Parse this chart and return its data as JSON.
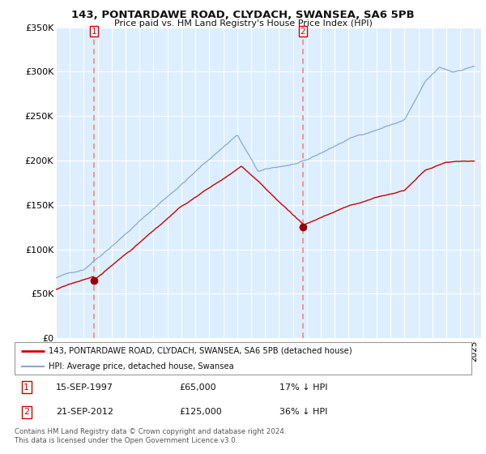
{
  "title": "143, PONTARDAWE ROAD, CLYDACH, SWANSEA, SA6 5PB",
  "subtitle": "Price paid vs. HM Land Registry's House Price Index (HPI)",
  "background_color": "#ffffff",
  "plot_bg_color": "#ddeeff",
  "grid_color": "#ffffff",
  "purchase1_date": 1997.75,
  "purchase1_price": 65000,
  "purchase2_date": 2012.72,
  "purchase2_price": 125000,
  "xmin": 1995,
  "xmax": 2025.5,
  "ymin": 0,
  "ymax": 350000,
  "yticks": [
    0,
    50000,
    100000,
    150000,
    200000,
    250000,
    300000,
    350000
  ],
  "ytick_labels": [
    "£0",
    "£50K",
    "£100K",
    "£150K",
    "£200K",
    "£250K",
    "£300K",
    "£350K"
  ],
  "legend_entry1": "143, PONTARDAWE ROAD, CLYDACH, SWANSEA, SA6 5PB (detached house)",
  "legend_entry2": "HPI: Average price, detached house, Swansea",
  "table_row1": [
    "1",
    "15-SEP-1997",
    "£65,000",
    "17% ↓ HPI"
  ],
  "table_row2": [
    "2",
    "21-SEP-2012",
    "£125,000",
    "36% ↓ HPI"
  ],
  "footer": "Contains HM Land Registry data © Crown copyright and database right 2024.\nThis data is licensed under the Open Government Licence v3.0.",
  "line_color_red": "#cc0000",
  "line_color_blue": "#88aacc",
  "dot_color": "#990000",
  "dashed_color": "#ee8888"
}
